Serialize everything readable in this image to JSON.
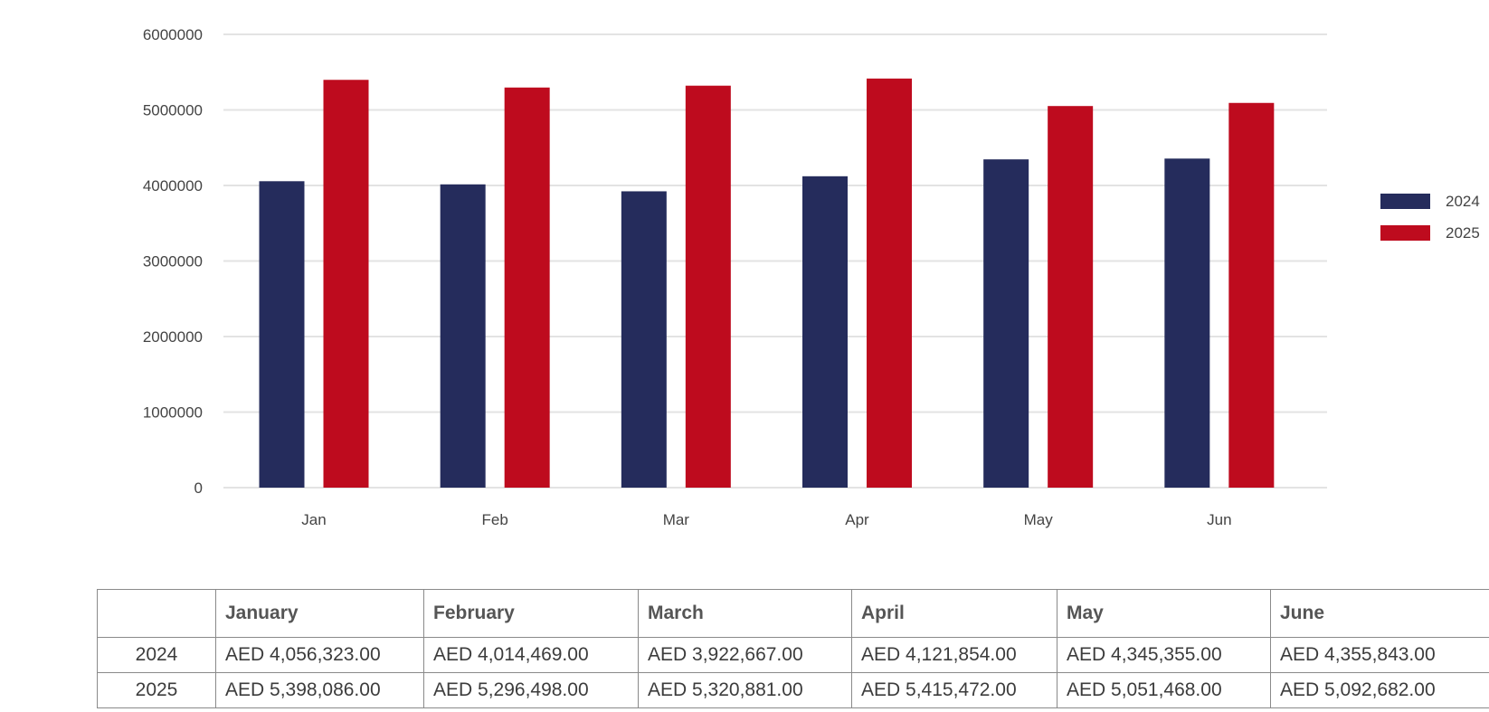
{
  "chart_data": {
    "type": "bar",
    "categories": [
      "Jan",
      "Feb",
      "Mar",
      "Apr",
      "May",
      "Jun"
    ],
    "series": [
      {
        "name": "2024",
        "color": "#252c5c",
        "values": [
          4056323,
          4014469,
          3922667,
          4121854,
          4345355,
          4355843
        ]
      },
      {
        "name": "2025",
        "color": "#be0b1e",
        "values": [
          5398086,
          5296498,
          5320881,
          5415472,
          5051468,
          5092682
        ]
      }
    ],
    "yticks": [
      "0",
      "1000000",
      "2000000",
      "3000000",
      "4000000",
      "5000000",
      "6000000"
    ],
    "ylim": [
      0,
      6000000
    ],
    "grid": true,
    "legend_position": "right"
  },
  "table": {
    "headers": [
      "",
      "January",
      "February",
      "March",
      "April",
      "May",
      "June"
    ],
    "rows": [
      {
        "label": "2024",
        "cells": [
          "AED 4,056,323.00",
          "AED 4,014,469.00",
          "AED 3,922,667.00",
          "AED 4,121,854.00",
          "AED 4,345,355.00",
          "AED 4,355,843.00"
        ]
      },
      {
        "label": "2025",
        "cells": [
          "AED 5,398,086.00",
          "AED 5,296,498.00",
          "AED 5,320,881.00",
          "AED 5,415,472.00",
          "AED 5,051,468.00",
          "AED 5,092,682.00"
        ]
      }
    ]
  }
}
